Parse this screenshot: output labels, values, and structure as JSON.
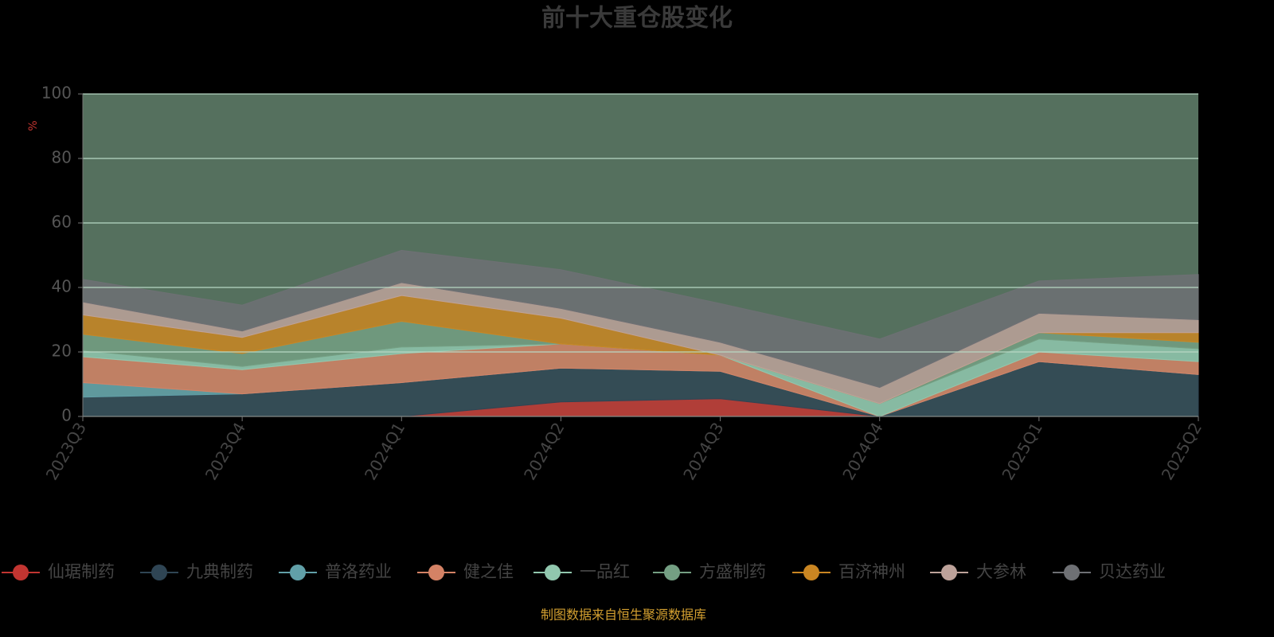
{
  "chart_data": {
    "type": "stacked-area",
    "title": "前十大重仓股变化",
    "y_label": "%",
    "categories": [
      "2023Q3",
      "2023Q4",
      "2024Q1",
      "2024Q2",
      "2024Q3",
      "2024Q4",
      "2025Q1",
      "2025Q2"
    ],
    "ylim": [
      0,
      100
    ],
    "yticks": [
      0,
      20,
      40,
      60,
      80,
      100
    ],
    "grid": true,
    "series": [
      {
        "name": "仙琚制药",
        "color": "#c23531",
        "values": [
          0,
          0,
          0,
          4.5,
          5.5,
          0,
          0,
          0
        ]
      },
      {
        "name": "九典制药",
        "color": "#2f4554",
        "values": [
          6,
          7,
          10.5,
          10.5,
          8.5,
          0,
          17,
          13
        ]
      },
      {
        "name": "普洛药业",
        "color": "#61a0a8",
        "values": [
          4.5,
          0,
          0,
          0,
          0,
          0,
          0,
          0
        ]
      },
      {
        "name": "健之佳",
        "color": "#d48265",
        "values": [
          8,
          7.5,
          9,
          7.5,
          5,
          0,
          3,
          4
        ]
      },
      {
        "name": "一品红",
        "color": "#91c7ae",
        "values": [
          2,
          1,
          2,
          0,
          0,
          4,
          4,
          4
        ]
      },
      {
        "name": "方盛制药",
        "color": "#749f83",
        "values": [
          5,
          4,
          8,
          0,
          0,
          0,
          2,
          2
        ]
      },
      {
        "name": "百济神州",
        "color": "#ca8622",
        "values": [
          6,
          5,
          8,
          8,
          0,
          0,
          0,
          3
        ]
      },
      {
        "name": "大参林",
        "color": "#bda29a",
        "values": [
          4,
          2,
          4,
          3,
          4,
          5,
          6,
          4
        ]
      },
      {
        "name": "贝达药业",
        "color": "#6e7074",
        "values": [
          7,
          8,
          10,
          12,
          12,
          15,
          10,
          14
        ]
      }
    ],
    "source": "制图数据来自恒生聚源数据库"
  }
}
